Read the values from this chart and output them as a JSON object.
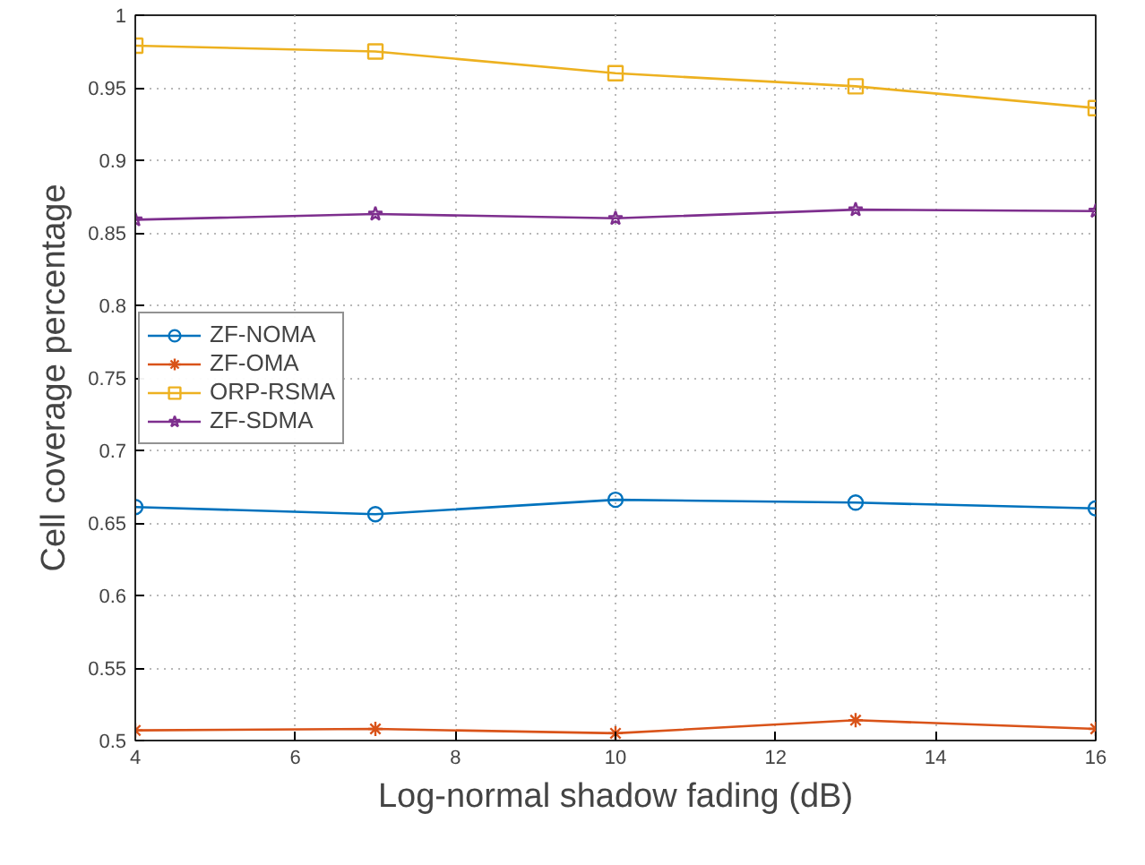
{
  "chart_data": {
    "type": "line",
    "xlabel": "Log-normal shadow fading (dB)",
    "ylabel": "Cell coverage percentage",
    "x": [
      4,
      7,
      10,
      13,
      16
    ],
    "series": [
      {
        "name": "ZF-NOMA",
        "color": "#0072bd",
        "marker": "circle",
        "values": [
          0.661,
          0.656,
          0.666,
          0.664,
          0.66
        ]
      },
      {
        "name": "ZF-OMA",
        "color": "#d95319",
        "marker": "cross",
        "values": [
          0.507,
          0.508,
          0.505,
          0.514,
          0.508
        ]
      },
      {
        "name": "ORP-RSMA",
        "color": "#edb120",
        "marker": "square",
        "values": [
          0.979,
          0.975,
          0.96,
          0.951,
          0.936
        ]
      },
      {
        "name": "ZF-SDMA",
        "color": "#7e2f8e",
        "marker": "star",
        "values": [
          0.859,
          0.863,
          0.86,
          0.866,
          0.865
        ]
      }
    ],
    "xlim": [
      4,
      16
    ],
    "xticks": [
      4,
      6,
      8,
      10,
      12,
      14,
      16
    ],
    "ylim": [
      0.5,
      1
    ],
    "yticks": [
      0.5,
      0.55,
      0.6,
      0.65,
      0.7,
      0.75,
      0.8,
      0.85,
      0.9,
      0.95,
      {
        "value": 1,
        "label": "1"
      }
    ],
    "grid": true,
    "legend": "left",
    "line_style": "solid"
  }
}
